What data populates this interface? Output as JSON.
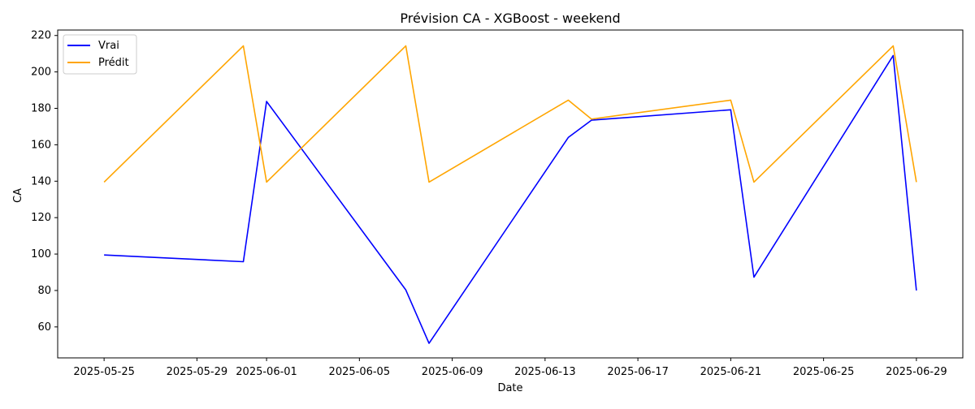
{
  "chart_data": {
    "type": "line",
    "title": "Prévision CA - XGBoost - weekend",
    "xlabel": "Date",
    "ylabel": "CA",
    "x": [
      "2025-05-25",
      "2025-05-31",
      "2025-06-01",
      "2025-06-07",
      "2025-06-08",
      "2025-06-14",
      "2025-06-15",
      "2025-06-21",
      "2025-06-22",
      "2025-06-28",
      "2025-06-29"
    ],
    "series": [
      {
        "name": "Vrai",
        "color": "#0000ff",
        "values": [
          99.5,
          95.8,
          183.8,
          80.3,
          51.0,
          164.0,
          173.5,
          179.2,
          87.3,
          209.0,
          80.0
        ]
      },
      {
        "name": "Prédit",
        "color": "#ffa500",
        "values": [
          139.5,
          214.3,
          139.5,
          214.3,
          139.5,
          184.5,
          174.1,
          184.5,
          139.5,
          214.3,
          139.5
        ]
      }
    ],
    "xticks": [
      "2025-05-25",
      "2025-05-29",
      "2025-06-01",
      "2025-06-05",
      "2025-06-09",
      "2025-06-13",
      "2025-06-17",
      "2025-06-21",
      "2025-06-25",
      "2025-06-29"
    ],
    "yticks": [
      60,
      80,
      100,
      120,
      140,
      160,
      180,
      200,
      220
    ],
    "xlim": [
      "2025-05-23",
      "2025-07-01"
    ],
    "ylim": [
      43,
      223
    ],
    "grid": false,
    "legend_position": "top-left"
  }
}
